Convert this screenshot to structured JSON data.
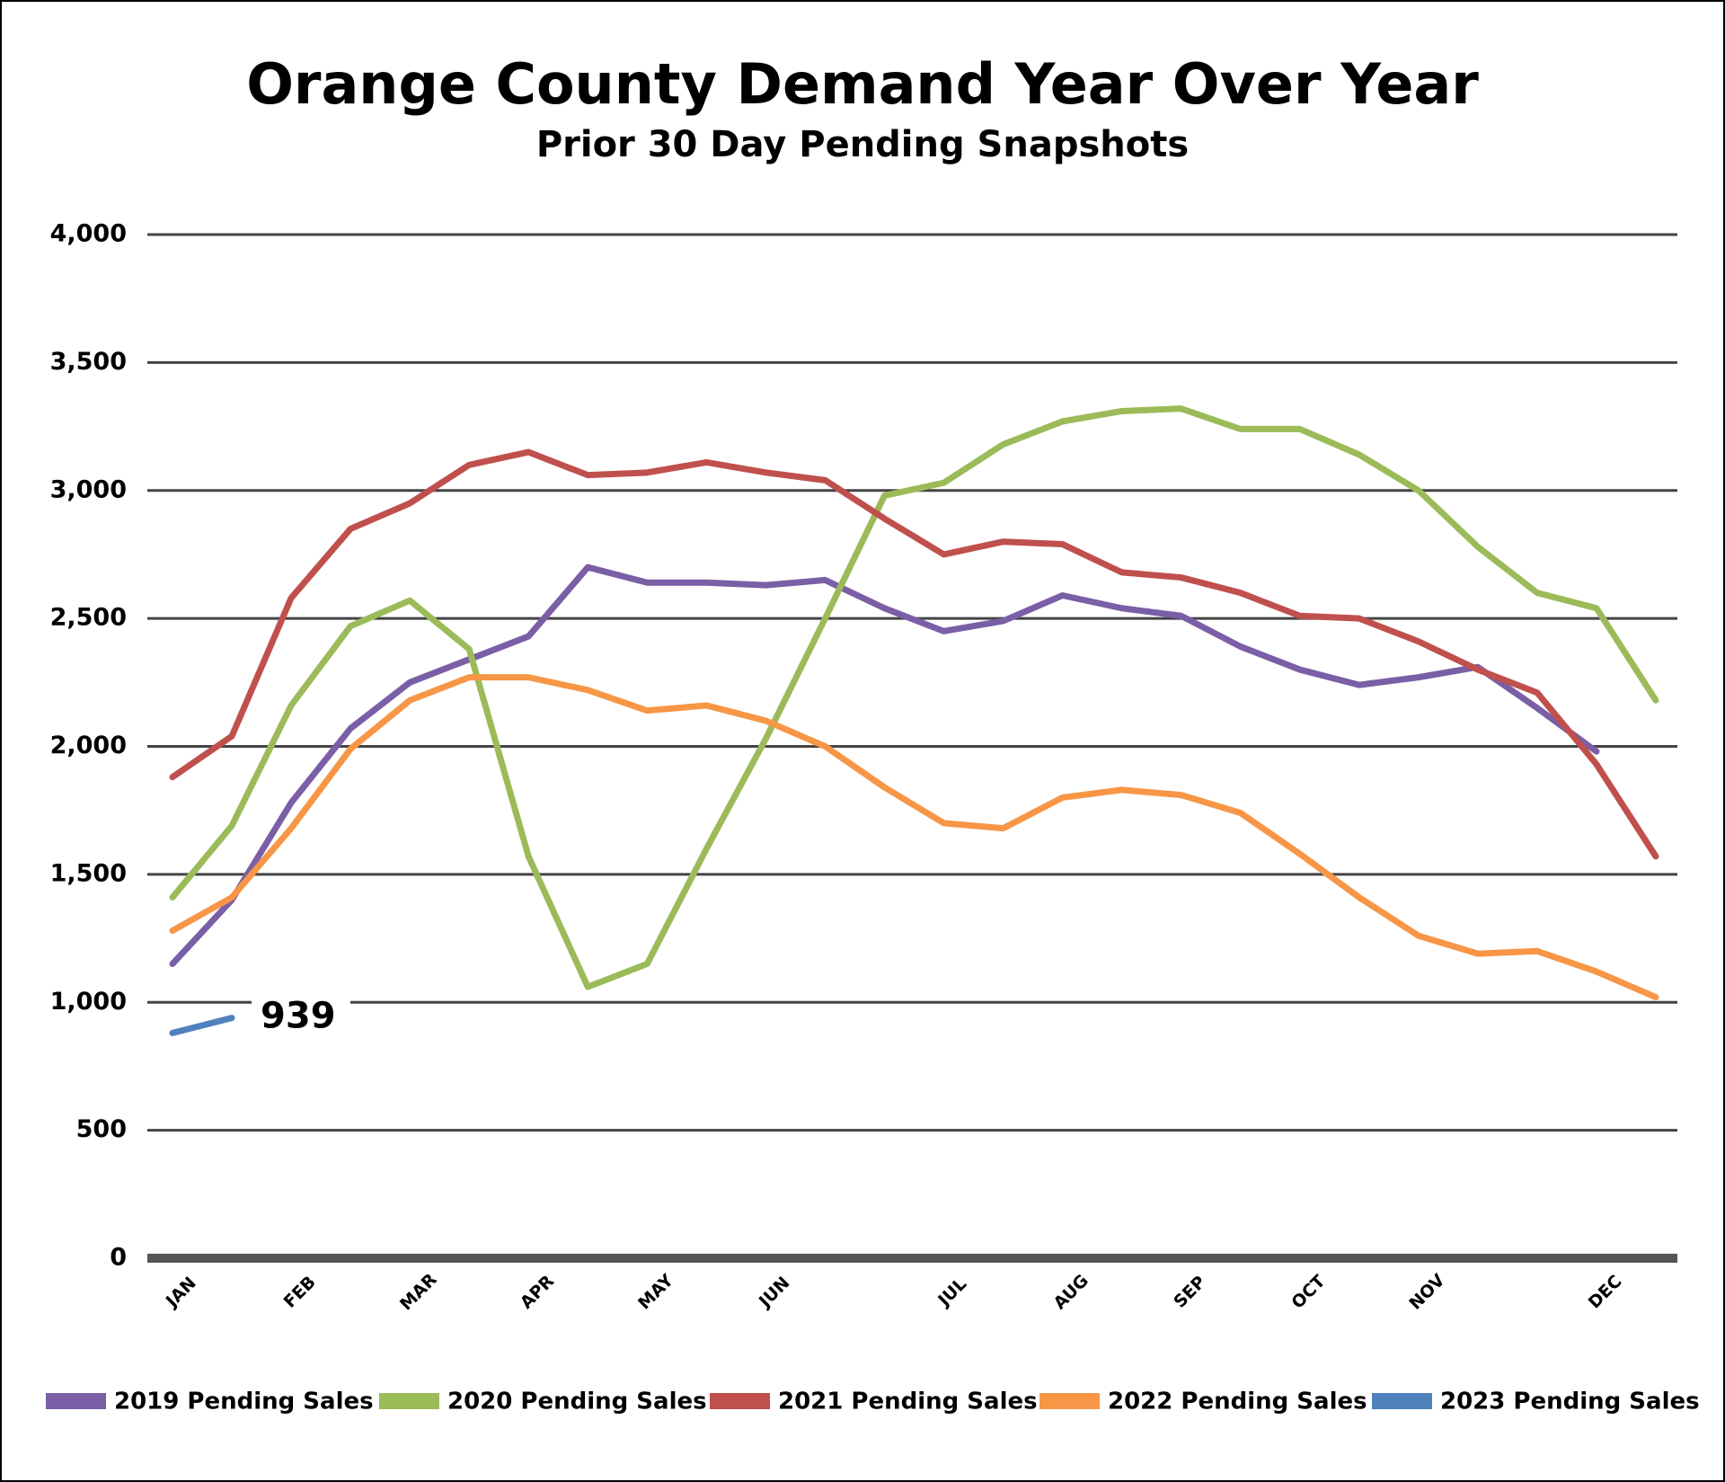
{
  "chart_data": {
    "type": "line",
    "title": "Orange County Demand Year Over Year",
    "subtitle": "Prior 30 Day Pending Snapshots",
    "categories": [
      "JAN",
      null,
      "FEB",
      null,
      "MAR",
      null,
      "APR",
      null,
      "MAY",
      null,
      "JUN",
      null,
      null,
      "JUL",
      null,
      "AUG",
      null,
      "SEP",
      null,
      "OCT",
      null,
      "NOV",
      null,
      null,
      "DEC",
      null
    ],
    "series": [
      {
        "name": "2019 Pending Sales",
        "color": "#7a5ea6",
        "values": [
          1150,
          1400,
          1780,
          2070,
          2250,
          2340,
          2430,
          2700,
          2640,
          2640,
          2630,
          2650,
          2540,
          2450,
          2490,
          2590,
          2540,
          2510,
          2390,
          2300,
          2240,
          2270,
          2310,
          2150,
          1980,
          null
        ]
      },
      {
        "name": "2020 Pending Sales",
        "color": "#9bbb59",
        "values": [
          1410,
          1690,
          2160,
          2470,
          2570,
          2380,
          1570,
          1060,
          1150,
          1600,
          2030,
          2500,
          2980,
          3030,
          3180,
          3270,
          3310,
          3320,
          3240,
          3240,
          3140,
          3000,
          2780,
          2600,
          2540,
          2180
        ]
      },
      {
        "name": "2021 Pending Sales",
        "color": "#c0504d",
        "values": [
          1880,
          2040,
          2580,
          2850,
          2950,
          3100,
          3150,
          3060,
          3070,
          3110,
          3070,
          3040,
          2890,
          2750,
          2800,
          2790,
          2680,
          2660,
          2600,
          2510,
          2500,
          2410,
          2300,
          2210,
          1930,
          1570
        ]
      },
      {
        "name": "2022 Pending Sales",
        "color": "#f79646",
        "values": [
          1280,
          1410,
          1680,
          1990,
          2180,
          2270,
          2270,
          2220,
          2140,
          2160,
          2100,
          2000,
          1840,
          1700,
          1680,
          1800,
          1830,
          1810,
          1740,
          1580,
          1410,
          1260,
          1190,
          1200,
          1120,
          1020
        ]
      },
      {
        "name": "2023 Pending Sales",
        "color": "#4f81bd",
        "values": [
          880,
          939,
          null,
          null,
          null,
          null,
          null,
          null,
          null,
          null,
          null,
          null,
          null,
          null,
          null,
          null,
          null,
          null,
          null,
          null,
          null,
          null,
          null,
          null,
          null,
          null
        ]
      }
    ],
    "ylim": [
      0,
      4000
    ],
    "yticks": [
      0,
      500,
      {
        "value": 1000,
        "label": "1,000"
      },
      {
        "value": 1500,
        "label": "1,500"
      },
      {
        "value": 2000,
        "label": "2,000"
      },
      {
        "value": 2500,
        "label": "2,500"
      },
      {
        "value": 3000,
        "label": "3,000"
      },
      {
        "value": 3500,
        "label": "3,500"
      },
      {
        "value": 4000,
        "label": "4,000"
      }
    ],
    "grid": true,
    "legend": "bottom"
  }
}
